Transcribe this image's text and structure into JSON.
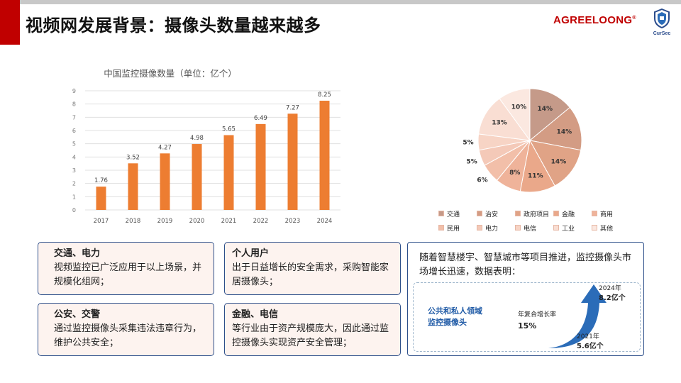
{
  "slide": {
    "title": "视频网发展背景：摄像头数量越来越多",
    "brand": "AGREELOONG",
    "brand_mark": "®",
    "logo_text": "CurSec"
  },
  "chart_data": [
    {
      "type": "bar",
      "title": "中国监控摄像数量（单位：亿个）",
      "categories": [
        "2017",
        "2018",
        "2019",
        "2020",
        "2021",
        "2022",
        "2023",
        "2024"
      ],
      "values": [
        1.76,
        3.52,
        4.27,
        4.98,
        5.65,
        6.49,
        7.27,
        8.25
      ],
      "ylim": [
        0,
        9
      ],
      "yticks": [
        "0",
        "1",
        "2",
        "3",
        "4",
        "5",
        "6",
        "7",
        "8",
        "9"
      ],
      "grid": true,
      "color": "#ed7d31"
    },
    {
      "type": "pie",
      "labels": [
        "交通",
        "治安",
        "政府项目",
        "金融",
        "商用",
        "民用",
        "电力",
        "电信",
        "工业",
        "其他"
      ],
      "values": [
        14,
        14,
        14,
        11,
        8,
        6,
        5,
        5,
        13,
        10
      ],
      "data_labels": [
        "14%",
        "14%",
        "14%",
        "11%",
        "8%",
        "6%",
        "5%",
        "5%",
        "13%",
        "10%"
      ],
      "colors": [
        "#c59a89",
        "#d39c84",
        "#e0a386",
        "#eaa88a",
        "#efb39a",
        "#f2bfa9",
        "#f4c9b8",
        "#f7d4c5",
        "#f9ded3",
        "#fbe8e0"
      ],
      "legend_position": "bottom"
    }
  ],
  "cards": [
    {
      "title": "交通、电力",
      "body": "视频监控已广泛应用于以上场景，并规模化组网；"
    },
    {
      "title": "个人用户",
      "body": "出于日益增长的安全需求，采购智能家居摄像头；"
    },
    {
      "title": "公安、交警",
      "body": "通过监控摄像头采集违法违章行为，维护公共安全；"
    },
    {
      "title": "金融、电信",
      "body": "等行业由于资产规模庞大，因此通过监控摄像头实现资产安全管理；"
    }
  ],
  "stats": {
    "intro": "随着智慧楼宇、智慧城市等项目推进，监控摄像头市场增长迅速，数据表明：",
    "segment": "公共和私人领域监控摄像头",
    "cagr_label": "年复合增长率",
    "cagr_value": "15%",
    "y2024_label": "2024年",
    "y2024_value": "8.2亿个",
    "y2021_label": "2021年",
    "y2021_value": "5.6亿个",
    "arrow_color": "#2b6cb8"
  }
}
